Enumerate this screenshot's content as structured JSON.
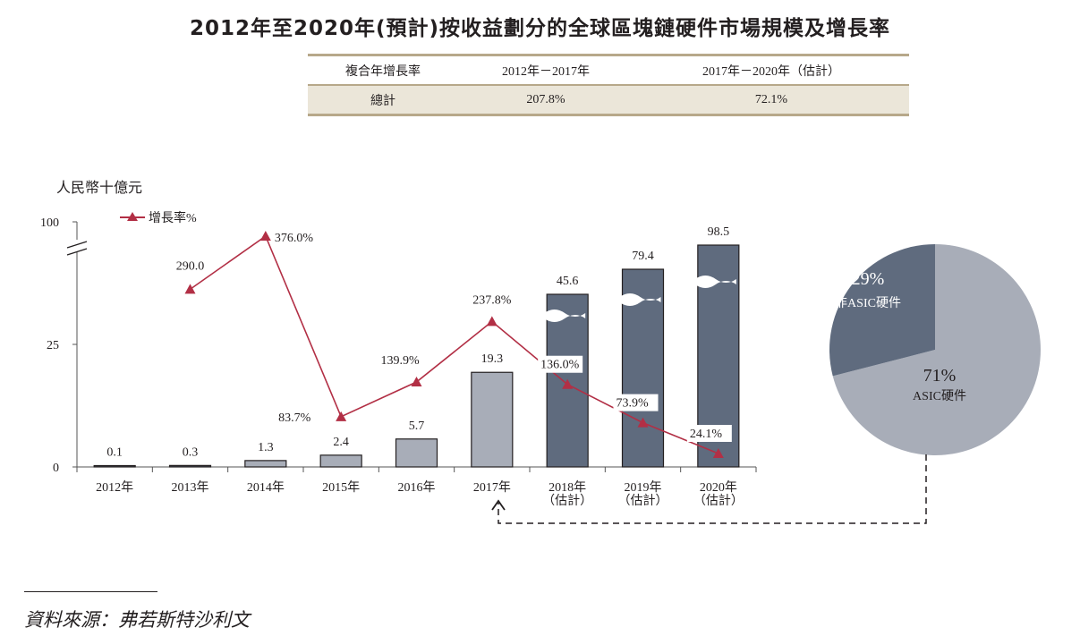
{
  "title": "2012年至2020年(預計)按收益劃分的全球區塊鏈硬件市場規模及增長率",
  "cagr_table": {
    "headers": [
      "複合年增長率",
      "2012年－2017年",
      "2017年－2020年（估計）"
    ],
    "rows": [
      {
        "label": "總計",
        "values": [
          "207.8%",
          "72.1%"
        ]
      }
    ]
  },
  "source": "資料來源：弗若斯特沙利文",
  "colors": {
    "bar_actual": "#a8adb8",
    "bar_estimate": "#5f6b7e",
    "line": "#b22f45",
    "pie_asic": "#a8adb8",
    "pie_non_asic": "#5f6b7e",
    "table_rule": "#b7a88a",
    "table_fill": "#ebe6d9"
  },
  "chart_data": [
    {
      "type": "bar",
      "title": "",
      "ylabel": "人民幣十億元",
      "ylim": [
        0,
        100
      ],
      "yticks": [
        "0",
        "25",
        "100"
      ],
      "axis_break": true,
      "categories": [
        "2012年",
        "2013年",
        "2014年",
        "2015年",
        "2016年",
        "2017年",
        "2018年\n(估計)",
        "2019年\n(估計)",
        "2020年\n(估計)"
      ],
      "category_lines": [
        [
          "2012年"
        ],
        [
          "2013年"
        ],
        [
          "2014年"
        ],
        [
          "2015年"
        ],
        [
          "2016年"
        ],
        [
          "2017年"
        ],
        [
          "2018年",
          "（估計）"
        ],
        [
          "2019年",
          "（估計）"
        ],
        [
          "2020年",
          "（估計）"
        ]
      ],
      "series": [
        {
          "name": "市場規模",
          "values": [
            0.1,
            0.3,
            1.3,
            2.4,
            5.7,
            19.3,
            45.6,
            79.4,
            98.5
          ],
          "labels": [
            "0.1",
            "0.3",
            "1.3",
            "2.4",
            "5.7",
            "19.3",
            "45.6",
            "79.4",
            "98.5"
          ],
          "estimated": [
            false,
            false,
            false,
            false,
            false,
            false,
            true,
            true,
            true
          ]
        },
        {
          "name": "增長率%",
          "type": "line",
          "values": [
            null,
            290.0,
            376.0,
            83.7,
            139.9,
            237.8,
            136.0,
            73.9,
            24.1
          ],
          "labels": [
            null,
            "290.0",
            "376.0%",
            "83.7%",
            "139.9%",
            "237.8%",
            "136.0%",
            "73.9%",
            "24.1%"
          ]
        }
      ],
      "legend": {
        "entries": [
          "增長率%"
        ],
        "position": "top-left"
      }
    },
    {
      "type": "pie",
      "title": "2017年",
      "slices": [
        {
          "label": "ASIC硬件",
          "value": 71,
          "text": "71%"
        },
        {
          "label": "非ASIC硬件",
          "value": 29,
          "text": "29%"
        }
      ]
    }
  ]
}
